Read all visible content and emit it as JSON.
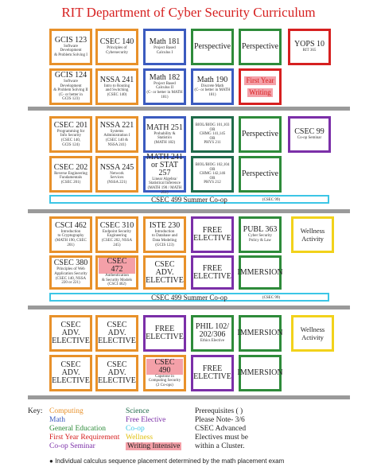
{
  "header": {
    "title": "RIT Department of Cyber Security Curriculum"
  },
  "blocks": [
    {
      "rows": [
        [
          {
            "color": "#e8912a",
            "title": "GCIS 123",
            "lines": [
              "Software Development",
              "& Problem Solving I"
            ]
          },
          {
            "color": "#e8912a",
            "title": "CSEC 140",
            "lines": [
              "Principles of",
              "Cybersecurity"
            ]
          },
          {
            "color": "#3b5bbf",
            "title": "Math 181",
            "lines": [
              "Project Based",
              "Calculus I"
            ]
          },
          {
            "color": "#2e8b3a",
            "title": "Perspective"
          },
          {
            "color": "#2e8b3a",
            "title": "Perspective"
          },
          {
            "color": "#d62020",
            "title": "YOPS 10",
            "lines": [
              "RIT 365"
            ]
          }
        ],
        [
          {
            "color": "#e8912a",
            "title": "GCIS 124",
            "lines": [
              "Software Development",
              "& Problem Solving II",
              "(C- or better in",
              "GCIS 123)"
            ]
          },
          {
            "color": "#e8912a",
            "title": "NSSA 241",
            "lines": [
              "Intro to Routing",
              "and Switching",
              "(CSEC 140)"
            ]
          },
          {
            "color": "#3b5bbf",
            "title": "Math 182",
            "lines": [
              "Project Based",
              "Calculus II",
              "(C- or better in MATH 181)"
            ]
          },
          {
            "color": "#3b5bbf",
            "title": "Math 190",
            "lines": [
              "Discrete Math",
              "(C- or better in MATH 181)"
            ]
          },
          {
            "color": "#d62020",
            "pills": [
              "First Year",
              "Writing"
            ]
          }
        ]
      ]
    },
    {
      "rows": [
        [
          {
            "color": "#e8912a",
            "title": "CSEC 201",
            "lines": [
              "Programming for",
              "Info Security",
              "(CSEC 140,",
              "GCIS 124)"
            ]
          },
          {
            "color": "#e8912a",
            "title": "NSSA 221",
            "lines": [
              "Systems",
              "Administration I",
              "(CSEC 140 &",
              "NSSA 241)"
            ]
          },
          {
            "color": "#3b5bbf",
            "title": "MATH 251",
            "lines": [
              "Probability &",
              "Statistics",
              "(MATH 182)"
            ]
          },
          {
            "color": "#1f6b4a",
            "lines": [
              "BIOL/BIOG 101,103",
              "OR",
              "CHMG 141,145",
              "OR",
              "PHYS 211"
            ]
          },
          {
            "color": "#2e8b3a",
            "title": "Perspective"
          },
          {
            "color": "#7b2fa8",
            "title": "CSEC 99",
            "lines": [
              "Co-op Seminar"
            ]
          }
        ],
        [
          {
            "color": "#e8912a",
            "title": "CSEC 202",
            "lines": [
              "Reverse Engineering",
              "Fundamentals",
              "(CSEC 201)"
            ]
          },
          {
            "color": "#e8912a",
            "title": "NSSA 245",
            "lines": [
              "Network",
              "Services",
              "(NSSA 221)"
            ]
          },
          {
            "color": "#3b5bbf",
            "title": "MATH 241 or STAT 257",
            "lines": [
              "Linear Algebra/",
              "Statistical Inference",
              "(MATH 190 / MATH 251)"
            ]
          },
          {
            "color": "#1f6b4a",
            "lines": [
              "BIOL/BIOG 102,104",
              "OR",
              "CHMG 142,146",
              "OR",
              "PHYS 212"
            ]
          },
          {
            "color": "#2e8b3a",
            "title": "Perspective"
          }
        ]
      ],
      "coop": {
        "title": "CSEC 499 Summer Co-op",
        "note": "(CSEC 99)"
      }
    },
    {
      "rows": [
        [
          {
            "color": "#e8912a",
            "title": "CSCI 462",
            "lines": [
              "Introduction",
              "to Cryptography",
              "(MATH 190, CSEC 201)"
            ]
          },
          {
            "color": "#e8912a",
            "title": "CSEC 310",
            "lines": [
              "Endpoint Security",
              "Engineering",
              "(CSEC 202, NSSA 245)"
            ]
          },
          {
            "color": "#e8912a",
            "title": "ISTE 230",
            "lines": [
              "Introduction",
              "to Database and",
              "Data Modeling",
              "(GCIS 123)"
            ]
          },
          {
            "color": "#7b2fa8",
            "title": "FREE ELECTIVE"
          },
          {
            "color": "#2e8b3a",
            "title": "PUBL 363",
            "lines": [
              "Cyber Security",
              "Policy & Law"
            ]
          },
          {
            "color": "#f2d21b",
            "title": "Wellness Activity"
          }
        ],
        [
          {
            "color": "#e8912a",
            "title": "CSEC 380",
            "lines": [
              "Principles of Web",
              "Application Security",
              "(CSEC 140, NSSA 220 or 221)"
            ]
          },
          {
            "color": "#e8912a",
            "title": "CSEC 472",
            "highlight": true,
            "lines": [
              "Authentication",
              "& Security Models",
              "(CSCI 462)"
            ]
          },
          {
            "color": "#e8912a",
            "title": "CSEC ADV. ELECTIVE"
          },
          {
            "color": "#7b2fa8",
            "title": "FREE ELECTIVE"
          },
          {
            "color": "#2e8b3a",
            "title": "IMMERSION"
          }
        ]
      ],
      "coop": {
        "title": "CSEC 499 Summer Co-op",
        "note": "(CSEC 99)"
      }
    },
    {
      "rows": [
        [
          {
            "color": "#e8912a",
            "title": "CSEC ADV. ELECTIVE"
          },
          {
            "color": "#e8912a",
            "title": "CSEC ADV. ELECTIVE"
          },
          {
            "color": "#7b2fa8",
            "title": "FREE ELECTIVE"
          },
          {
            "color": "#2e8b3a",
            "title": "PHIL 102/ 202/306",
            "lines": [
              "Ethics Elective"
            ]
          },
          {
            "color": "#2e8b3a",
            "title": "IMMERSION"
          },
          {
            "color": "#f2d21b",
            "title": "Wellness Activity"
          }
        ],
        [
          {
            "color": "#e8912a",
            "title": "CSEC ADV. ELECTIVE"
          },
          {
            "color": "#e8912a",
            "title": "CSEC ADV. ELECTIVE"
          },
          {
            "color": "#e8912a",
            "title": "CSEC 490",
            "highlight": true,
            "lines": [
              "Capstone in",
              "Computing Security",
              "(2 Co-ops)"
            ]
          },
          {
            "color": "#7b2fa8",
            "title": "FREE ELECTIVE"
          },
          {
            "color": "#2e8b3a",
            "title": "IMMERSION"
          }
        ]
      ]
    }
  ],
  "key": {
    "label": "Key:",
    "col1": [
      {
        "text": "Computing",
        "color": "#e8912a"
      },
      {
        "text": "Math",
        "color": "#3b5bbf"
      },
      {
        "text": "General Education",
        "color": "#2e8b3a"
      },
      {
        "text": "First Year Requirement",
        "color": "#d62020"
      },
      {
        "text": "Co-op Seminar",
        "color": "#7b2fa8"
      }
    ],
    "col2": [
      {
        "text": "Science",
        "color": "#1f6b4a"
      },
      {
        "text": "Free Elective",
        "color": "#7b2fa8"
      },
      {
        "text": "Co-op",
        "color": "#3cc6e6"
      },
      {
        "text": "Wellness",
        "color": "#e0c010"
      },
      {
        "text": "Writing Intensive",
        "color": "#222222",
        "highlight": true
      }
    ],
    "notes": [
      "Prerequisites ( )",
      "Please Note- 3/6",
      "CSEC Advanced",
      "Electives must be",
      "within a Cluster."
    ]
  },
  "footnote": "Individual calculus sequence placement determined by the math placement exam"
}
